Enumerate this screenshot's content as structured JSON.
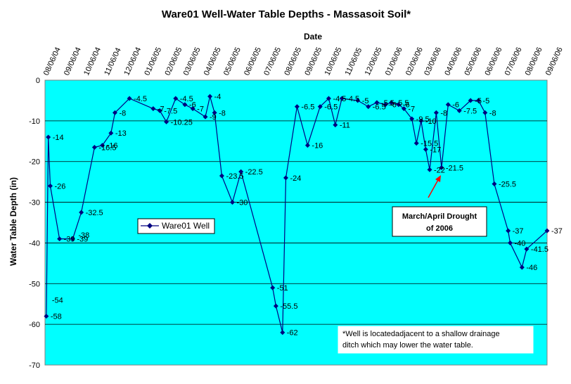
{
  "chart_data": {
    "type": "line",
    "title": "Ware01 Well-Water Table Depths - Massasoit Soil*",
    "xlabel": "Date",
    "ylabel": "Water Table Depth (in)",
    "ylim": [
      -70,
      0
    ],
    "yticks": [
      0,
      -10,
      -20,
      -30,
      -40,
      -50,
      -60,
      -70
    ],
    "x_range": [
      "2004-08-06",
      "2006-09-06"
    ],
    "x_tick_labels": [
      "08/06/04",
      "09/06/04",
      "10/06/04",
      "11/06/04",
      "12/06/04",
      "01/06/05",
      "02/06/05",
      "03/06/05",
      "04/06/05",
      "05/06/05",
      "06/06/05",
      "07/06/05",
      "08/06/05",
      "09/06/05",
      "10/06/05",
      "11/06/05",
      "12/06/05",
      "01/06/06",
      "02/06/06",
      "03/06/06",
      "04/06/06",
      "05/06/06",
      "06/06/06",
      "07/06/06",
      "08/06/06",
      "09/06/06"
    ],
    "plot_background": "#00ffff",
    "line_color": "#000080",
    "grid": true,
    "series": [
      {
        "name": "Ware01 Well",
        "points": [
          {
            "x": "2004-08-08",
            "y": -58,
            "label": "-58"
          },
          {
            "x": "2004-08-11",
            "y": -14,
            "label": "-14"
          },
          {
            "x": "2004-08-14",
            "y": -26,
            "label": "-26"
          },
          {
            "x": "2004-08-28",
            "y": -39,
            "label": "-39"
          },
          {
            "x": "2004-09-17",
            "y": -39,
            "label": "-39"
          },
          {
            "x": "2004-09-30",
            "y": -32.5,
            "label": "-32.5"
          },
          {
            "x": "2004-10-20",
            "y": -16.5,
            "label": "-16.5"
          },
          {
            "x": "2004-11-01",
            "y": -16,
            "label": "-16"
          },
          {
            "x": "2004-11-14",
            "y": -13,
            "label": "-13"
          },
          {
            "x": "2004-11-20",
            "y": -8,
            "label": "-8"
          },
          {
            "x": "2004-12-12",
            "y": -4.5,
            "label": "-4.5"
          },
          {
            "x": "2005-01-17",
            "y": -7,
            "label": "-7"
          },
          {
            "x": "2005-01-27",
            "y": -7.5,
            "label": "-7.5"
          },
          {
            "x": "2005-02-06",
            "y": -10.25,
            "label": "-10.25"
          },
          {
            "x": "2005-02-20",
            "y": -4.5,
            "label": "-4.5"
          },
          {
            "x": "2005-03-06",
            "y": -6,
            "label": "-6"
          },
          {
            "x": "2005-03-18",
            "y": -7,
            "label": "-7"
          },
          {
            "x": "2005-04-06",
            "y": -9,
            "label": "-9"
          },
          {
            "x": "2005-04-13",
            "y": -4,
            "label": "-4"
          },
          {
            "x": "2005-04-20",
            "y": -8,
            "label": "-8"
          },
          {
            "x": "2005-05-01",
            "y": -23.5,
            "label": "-23.5"
          },
          {
            "x": "2005-05-17",
            "y": -30,
            "label": "-30"
          },
          {
            "x": "2005-05-30",
            "y": -22.5,
            "label": "-22.5"
          },
          {
            "x": "2005-07-17",
            "y": -51,
            "label": "-51"
          },
          {
            "x": "2005-07-22",
            "y": -55.5,
            "label": "-55.5"
          },
          {
            "x": "2005-08-01",
            "y": -62,
            "label": "-62"
          },
          {
            "x": "2005-08-06",
            "y": -24,
            "label": "-24"
          },
          {
            "x": "2005-08-23",
            "y": -6.5,
            "label": "-6.5"
          },
          {
            "x": "2005-09-08",
            "y": -16,
            "label": "-16"
          },
          {
            "x": "2005-09-27",
            "y": -6.5,
            "label": "-6.5"
          },
          {
            "x": "2005-10-10",
            "y": -4.5,
            "label": "-4.5"
          },
          {
            "x": "2005-10-20",
            "y": -11,
            "label": "-11"
          },
          {
            "x": "2005-10-30",
            "y": -4.5,
            "label": "-4.5"
          },
          {
            "x": "2005-11-23",
            "y": -5,
            "label": "-5"
          },
          {
            "x": "2005-12-09",
            "y": -6.5,
            "label": "-6.5"
          },
          {
            "x": "2005-12-22",
            "y": -5.5,
            "label": "-5.5"
          },
          {
            "x": "2006-01-04",
            "y": -6,
            "label": "-6"
          },
          {
            "x": "2006-01-13",
            "y": -5.5,
            "label": "-5.5"
          },
          {
            "x": "2006-01-24",
            "y": -6,
            "label": "-6"
          },
          {
            "x": "2006-02-01",
            "y": -7,
            "label": "-7"
          },
          {
            "x": "2006-02-13",
            "y": -9.5,
            "label": "-9.5"
          },
          {
            "x": "2006-02-20",
            "y": -15.5,
            "label": "-15.5"
          },
          {
            "x": "2006-02-27",
            "y": -10,
            "label": "-10"
          },
          {
            "x": "2006-03-06",
            "y": -17,
            "label": "-17"
          },
          {
            "x": "2006-03-12",
            "y": -22,
            "label": "-22"
          },
          {
            "x": "2006-03-22",
            "y": -8,
            "label": "-8"
          },
          {
            "x": "2006-03-30",
            "y": -21.5,
            "label": "-21.5"
          },
          {
            "x": "2006-04-09",
            "y": -6,
            "label": "-6"
          },
          {
            "x": "2006-04-26",
            "y": -7.5,
            "label": "-7.5"
          },
          {
            "x": "2006-05-13",
            "y": -5,
            "label": "-5"
          },
          {
            "x": "2006-05-25",
            "y": -5,
            "label": "-5"
          },
          {
            "x": "2006-06-04",
            "y": -8,
            "label": "-8"
          },
          {
            "x": "2006-06-18",
            "y": -25.5,
            "label": "-25.5"
          },
          {
            "x": "2006-07-09",
            "y": -37,
            "label": "-37"
          },
          {
            "x": "2006-07-12",
            "y": -40,
            "label": "-40"
          },
          {
            "x": "2006-07-30",
            "y": -46,
            "label": "-46"
          },
          {
            "x": "2006-08-06",
            "y": -41.5,
            "label": "-41.5"
          },
          {
            "x": "2006-09-06",
            "y": -37,
            "label": "-37"
          }
        ]
      }
    ],
    "extra_labels": [
      "-54",
      "-38"
    ],
    "legend": {
      "entry": "Ware01 Well",
      "position": "center-left"
    },
    "annotations": {
      "drought": "March/April Drought of 2006",
      "drought_lines": [
        "March/April Drought",
        "of 2006"
      ],
      "note_lines": [
        "*Well is locatedadjacent to a shallow drainage",
        "ditch which may lower the water table."
      ]
    }
  }
}
